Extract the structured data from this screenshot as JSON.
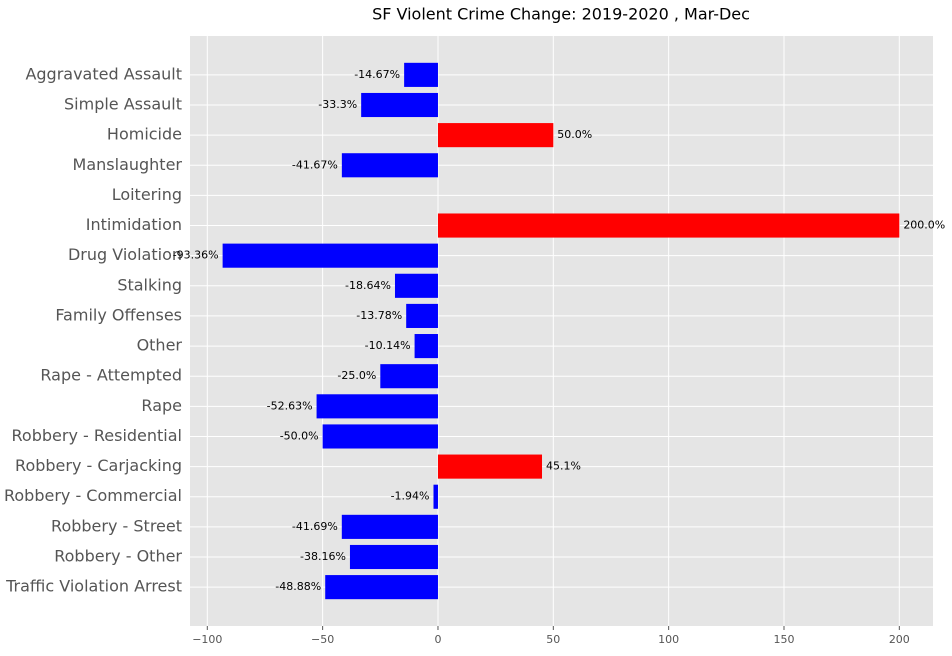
{
  "chart_data": {
    "type": "barh",
    "title": "SF Violent Crime Change: 2019-2020 , Mar-Dec",
    "categories": [
      "Aggravated Assault",
      "Simple Assault",
      "Homicide",
      "Manslaughter",
      "Loitering",
      "Intimidation",
      "Drug Violation",
      "Stalking",
      "Family Offenses",
      "Other",
      "Rape - Attempted",
      "Rape",
      "Robbery - Residential",
      "Robbery - Carjacking",
      "Robbery - Commercial",
      "Robbery - Street",
      "Robbery - Other",
      "Traffic Violation Arrest"
    ],
    "values": [
      -14.67,
      -33.3,
      50.0,
      -41.67,
      null,
      200.0,
      -93.36,
      -18.64,
      -13.78,
      -10.14,
      -25.0,
      -52.63,
      -50.0,
      45.1,
      -1.94,
      -41.69,
      -38.16,
      -48.88
    ],
    "value_labels": [
      "-14.67%",
      "-33.3%",
      "50.0%",
      "-41.67%",
      null,
      "200.0%",
      "-93.36%",
      "-18.64%",
      "-13.78%",
      "-10.14%",
      "-25.0%",
      "-52.63%",
      "-50.0%",
      "45.1%",
      "-1.94%",
      "-41.69%",
      "-38.16%",
      "-48.88%"
    ],
    "positive_color": "#ff0000",
    "negative_color": "#0000ff",
    "xlim": [
      -107.5,
      214.6
    ],
    "xticks": [
      {
        "value": -100,
        "label": "−100"
      },
      {
        "value": -50,
        "label": "−50"
      },
      0,
      50,
      100,
      150,
      200
    ],
    "grid": true
  }
}
